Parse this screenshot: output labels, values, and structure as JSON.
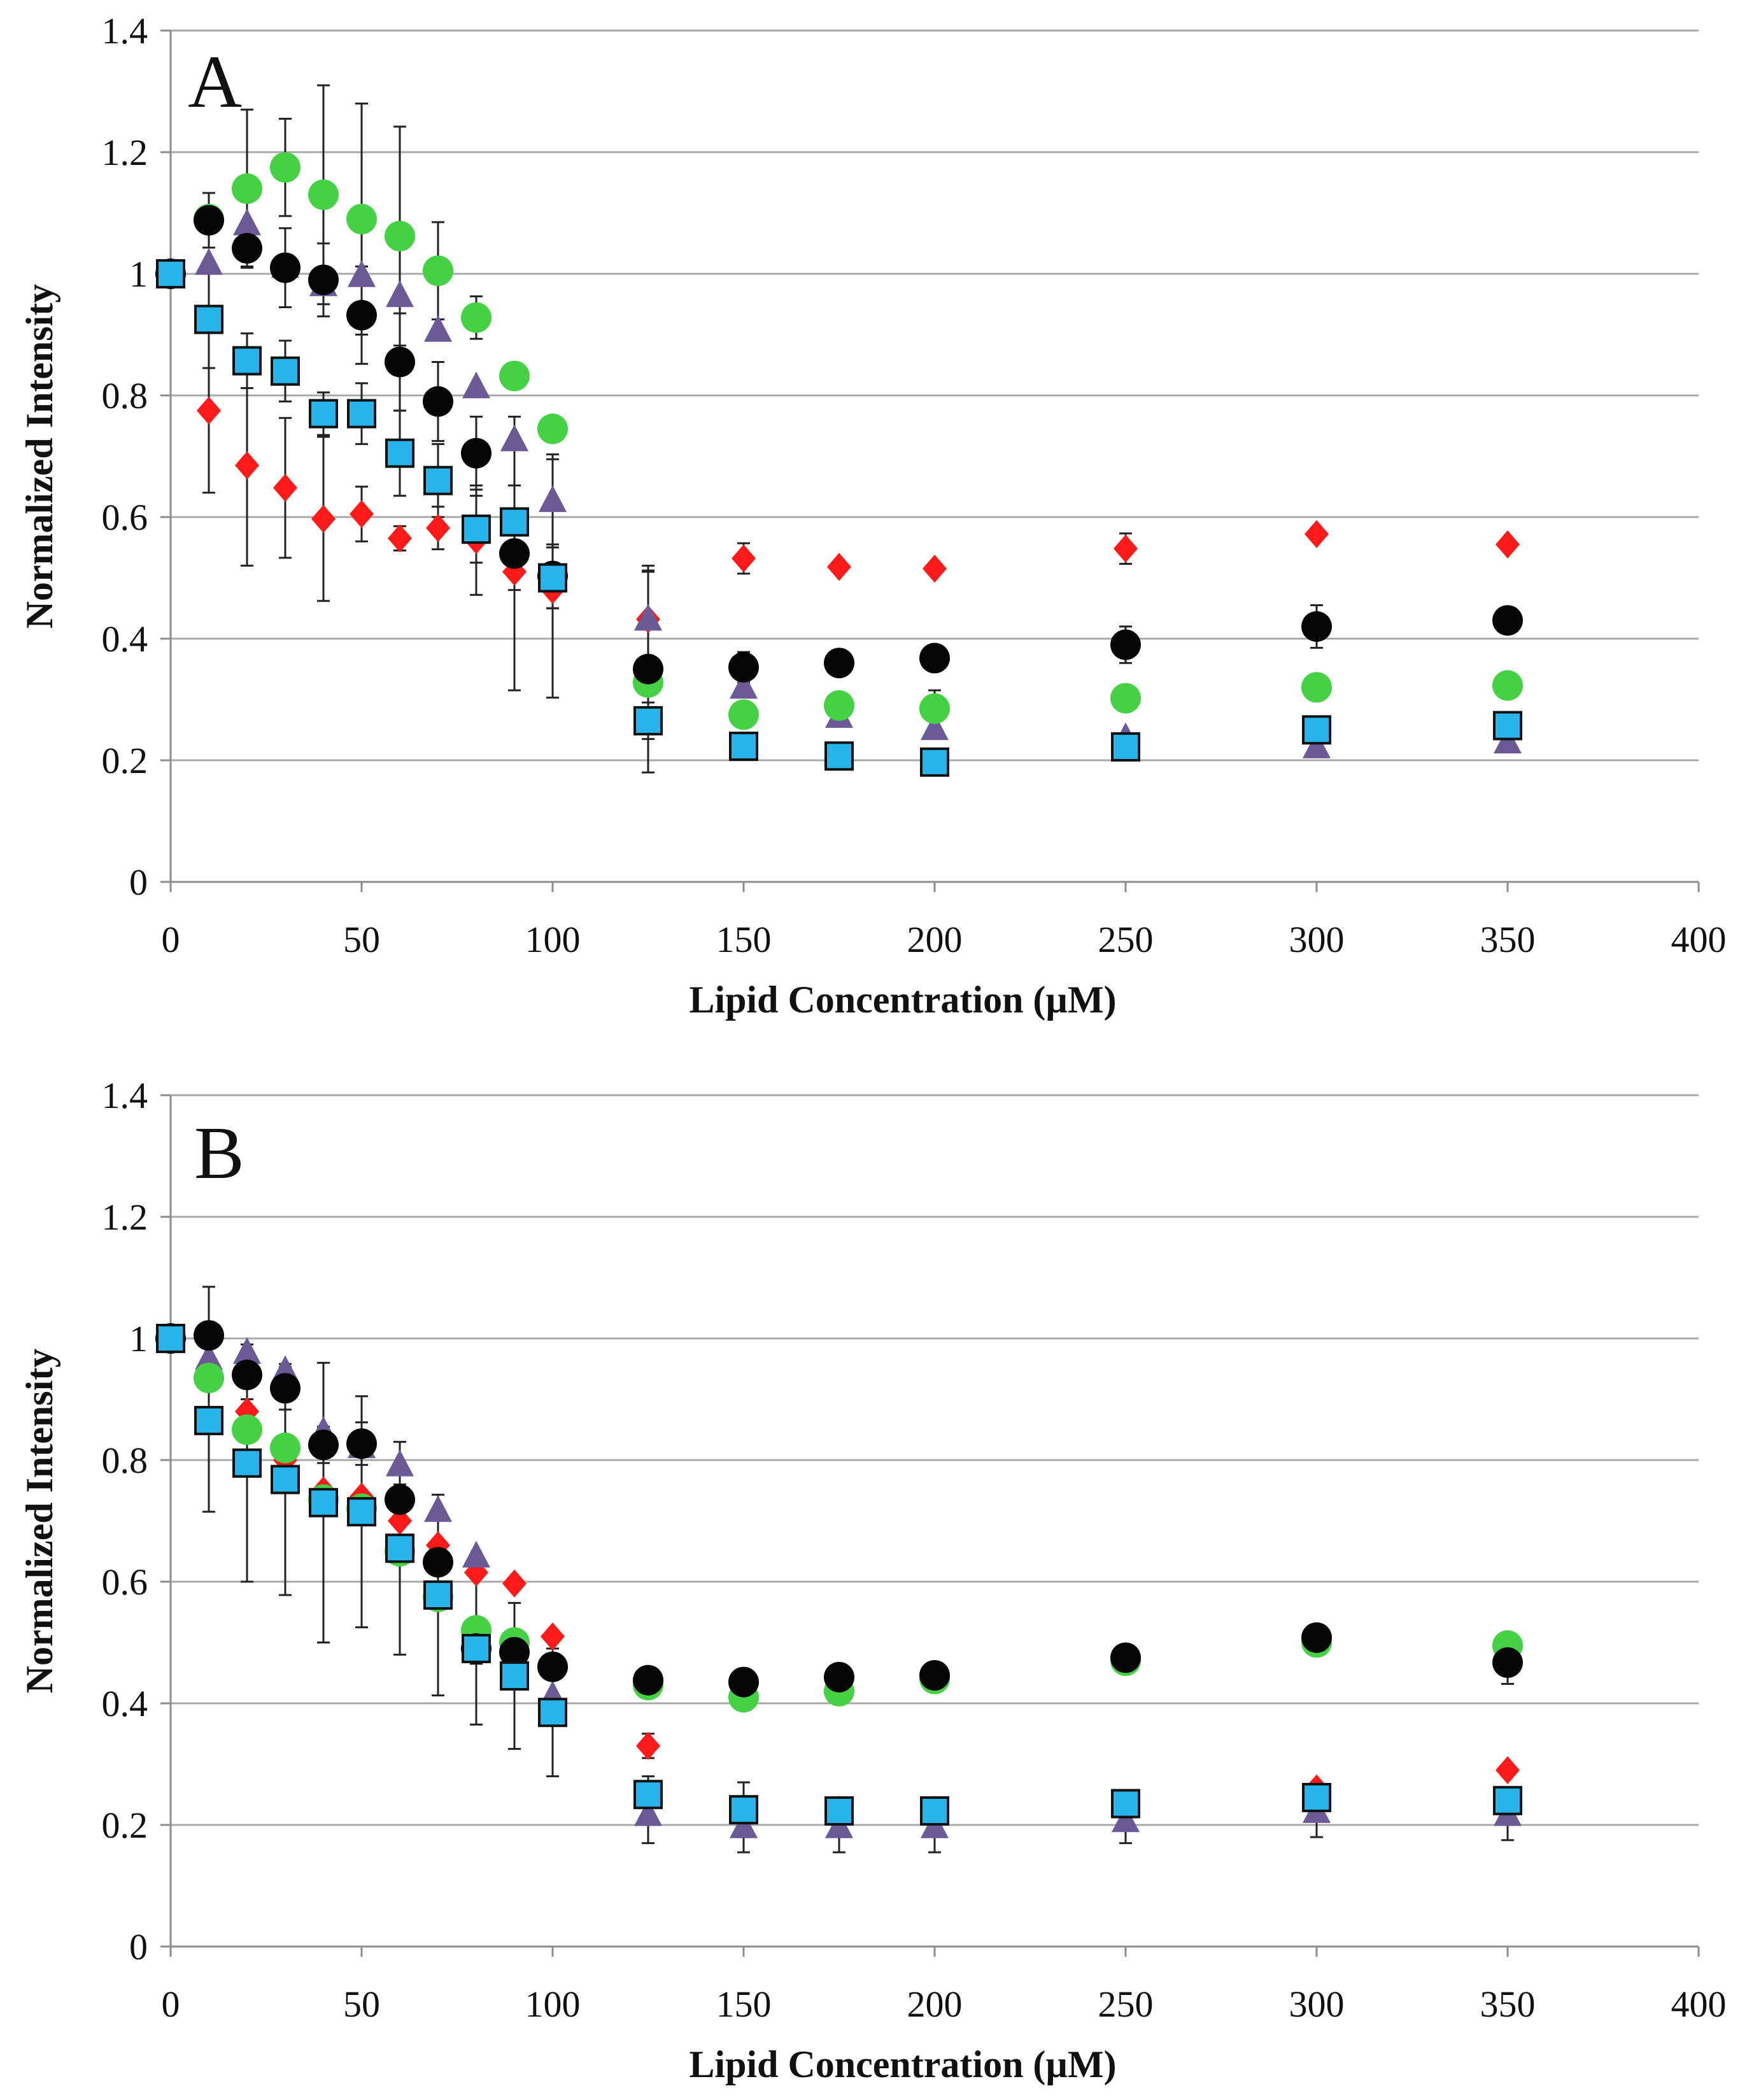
{
  "colors": {
    "red": "#ff1a1a",
    "black": "#050505",
    "green": "#44d144",
    "purple": "#6b5a96",
    "blue": "#27b4ea",
    "grid": "#a8a8a8",
    "axis": "#8c8c8c",
    "errorbar": "#222222"
  },
  "chart_data": [
    {
      "type": "scatter",
      "panel": "A",
      "xlabel": "Lipid Concentration (µM)",
      "ylabel": "Normalized Intensity",
      "xlim": [
        0,
        400
      ],
      "ylim": [
        0,
        1.4
      ],
      "xticks": [
        "0",
        "50",
        "100",
        "150",
        "200",
        "250",
        "300",
        "350",
        "400"
      ],
      "yticks": [
        "0",
        "0.2",
        "0.4",
        "0.6",
        "0.8",
        "1",
        "1.2",
        "1.4"
      ],
      "grid": true,
      "x": [
        0,
        10,
        20,
        30,
        40,
        50,
        60,
        70,
        80,
        90,
        100,
        125,
        150,
        175,
        200,
        250,
        300,
        350
      ],
      "series": [
        {
          "name": "red diamonds",
          "marker": "diamond",
          "color": "red",
          "values": [
            1.0,
            0.775,
            0.685,
            0.648,
            0.597,
            0.605,
            0.565,
            0.582,
            0.562,
            0.51,
            0.48,
            0.432,
            0.532,
            0.518,
            0.515,
            0.548,
            0.572,
            0.555
          ],
          "error": [
            0,
            0.135,
            0.165,
            0.115,
            0.135,
            0.045,
            0.02,
            0.035,
            0.09,
            0.03,
            0.03,
            0.08,
            0.025,
            0,
            0,
            0.025,
            0,
            0
          ]
        },
        {
          "name": "purple triangles",
          "marker": "triangle",
          "color": "purple",
          "values": [
            1.0,
            1.015,
            1.08,
            1.01,
            0.98,
            0.995,
            0.962,
            0.905,
            0.812,
            0.725,
            0.625,
            0.43,
            0.318,
            0.27,
            0.25,
            0.235,
            0.22,
            0.228
          ],
          "error": [
            0,
            0,
            0,
            0,
            0,
            0,
            0,
            0,
            0,
            0,
            0.07,
            0.08,
            0,
            0,
            0,
            0,
            0,
            0
          ]
        },
        {
          "name": "green circles",
          "marker": "circle",
          "color": "green",
          "values": [
            1.0,
            1.09,
            1.14,
            1.175,
            1.13,
            1.09,
            1.062,
            1.005,
            0.928,
            0.832,
            0.745,
            0.328,
            0.275,
            0.29,
            0.285,
            0.302,
            0.32,
            0.323
          ],
          "error": [
            0,
            0,
            0.13,
            0.08,
            0.18,
            0.19,
            0.18,
            0.08,
            0.035,
            0,
            0,
            0,
            0,
            0,
            0.03,
            0,
            0,
            0
          ]
        },
        {
          "name": "black circles",
          "marker": "circle",
          "color": "black",
          "values": [
            1.0,
            1.088,
            1.042,
            1.01,
            0.99,
            0.932,
            0.855,
            0.79,
            0.705,
            0.54,
            0.503,
            0.35,
            0.353,
            0.36,
            0.368,
            0.39,
            0.42,
            0.43
          ],
          "error": [
            0,
            0.045,
            0.03,
            0.065,
            0.06,
            0.08,
            0.08,
            0.065,
            0.06,
            0.225,
            0.2,
            0.17,
            0.025,
            0.015,
            0.02,
            0.03,
            0.035,
            0.02
          ]
        },
        {
          "name": "blue squares",
          "marker": "square",
          "color": "blue",
          "values": [
            1.0,
            0.925,
            0.857,
            0.84,
            0.77,
            0.77,
            0.705,
            0.66,
            0.58,
            0.592,
            0.5,
            0.265,
            0.223,
            0.207,
            0.197,
            0.222,
            0.25,
            0.257
          ],
          "error": [
            0,
            0.08,
            0.045,
            0.05,
            0.035,
            0.05,
            0.07,
            0.06,
            0.055,
            0.06,
            0.05,
            0.03,
            0.02,
            0.015,
            0.015,
            0.02,
            0.015,
            0.015
          ]
        }
      ]
    },
    {
      "type": "scatter",
      "panel": "B",
      "xlabel": "Lipid Concentration (µM)",
      "ylabel": "Normalized Intensity",
      "xlim": [
        0,
        400
      ],
      "ylim": [
        0,
        1.4
      ],
      "xticks": [
        "0",
        "50",
        "100",
        "150",
        "200",
        "250",
        "300",
        "350",
        "400"
      ],
      "yticks": [
        "0",
        "0.2",
        "0.4",
        "0.6",
        "0.8",
        "1",
        "1.2",
        "1.4"
      ],
      "grid": true,
      "x": [
        0,
        10,
        20,
        30,
        40,
        50,
        60,
        70,
        80,
        90,
        100,
        125,
        150,
        175,
        200,
        250,
        300,
        350
      ],
      "series": [
        {
          "name": "red diamonds",
          "marker": "diamond",
          "color": "red",
          "values": [
            1.0,
            0.955,
            0.88,
            0.8,
            0.75,
            0.74,
            0.7,
            0.66,
            0.615,
            0.597,
            0.51,
            0.33,
            0.225,
            0.225,
            0.225,
            0.23,
            0.26,
            0.29
          ],
          "error": [
            0,
            0,
            0,
            0,
            0,
            0,
            0,
            0,
            0,
            0,
            0,
            0.02,
            0,
            0,
            0,
            0,
            0,
            0
          ]
        },
        {
          "name": "purple triangles",
          "marker": "triangle",
          "color": "purple",
          "values": [
            1.0,
            0.965,
            0.975,
            0.945,
            0.845,
            0.82,
            0.79,
            0.715,
            0.64,
            0.48,
            0.41,
            0.215,
            0.195,
            0.195,
            0.195,
            0.205,
            0.22,
            0.215
          ],
          "error": [
            0,
            0,
            0,
            0,
            0,
            0,
            0,
            0,
            0,
            0,
            0,
            0.045,
            0.04,
            0.04,
            0.04,
            0.035,
            0.04,
            0.04
          ]
        },
        {
          "name": "green circles",
          "marker": "circle",
          "color": "green",
          "values": [
            1.0,
            0.935,
            0.85,
            0.82,
            0.735,
            0.72,
            0.65,
            0.575,
            0.52,
            0.5,
            0.46,
            0.43,
            0.41,
            0.42,
            0.44,
            0.47,
            0.5,
            0.495
          ],
          "error": [
            0,
            0,
            0,
            0,
            0,
            0,
            0,
            0,
            0,
            0,
            0,
            0,
            0,
            0,
            0,
            0,
            0,
            0
          ]
        },
        {
          "name": "black circles",
          "marker": "circle",
          "color": "black",
          "values": [
            1.0,
            1.005,
            0.94,
            0.918,
            0.825,
            0.827,
            0.735,
            0.632,
            0.49,
            0.484,
            0.46,
            0.438,
            0.435,
            0.443,
            0.446,
            0.475,
            0.508,
            0.467
          ],
          "error": [
            0,
            0.08,
            0.04,
            0.035,
            0.03,
            0.035,
            0.025,
            0.02,
            0.025,
            0.02,
            0.015,
            0.01,
            0.01,
            0.01,
            0.01,
            0.01,
            0.015,
            0.035
          ]
        },
        {
          "name": "blue squares",
          "marker": "square",
          "color": "blue",
          "values": [
            1.0,
            0.865,
            0.795,
            0.768,
            0.73,
            0.715,
            0.655,
            0.578,
            0.49,
            0.445,
            0.385,
            0.25,
            0.225,
            0.223,
            0.223,
            0.235,
            0.245,
            0.24
          ],
          "error": [
            0,
            0.15,
            0.195,
            0.19,
            0.23,
            0.19,
            0.175,
            0.165,
            0.125,
            0.12,
            0.105,
            0.03,
            0.045,
            0.02,
            0.02,
            0.015,
            0.015,
            0.015
          ]
        }
      ]
    }
  ]
}
